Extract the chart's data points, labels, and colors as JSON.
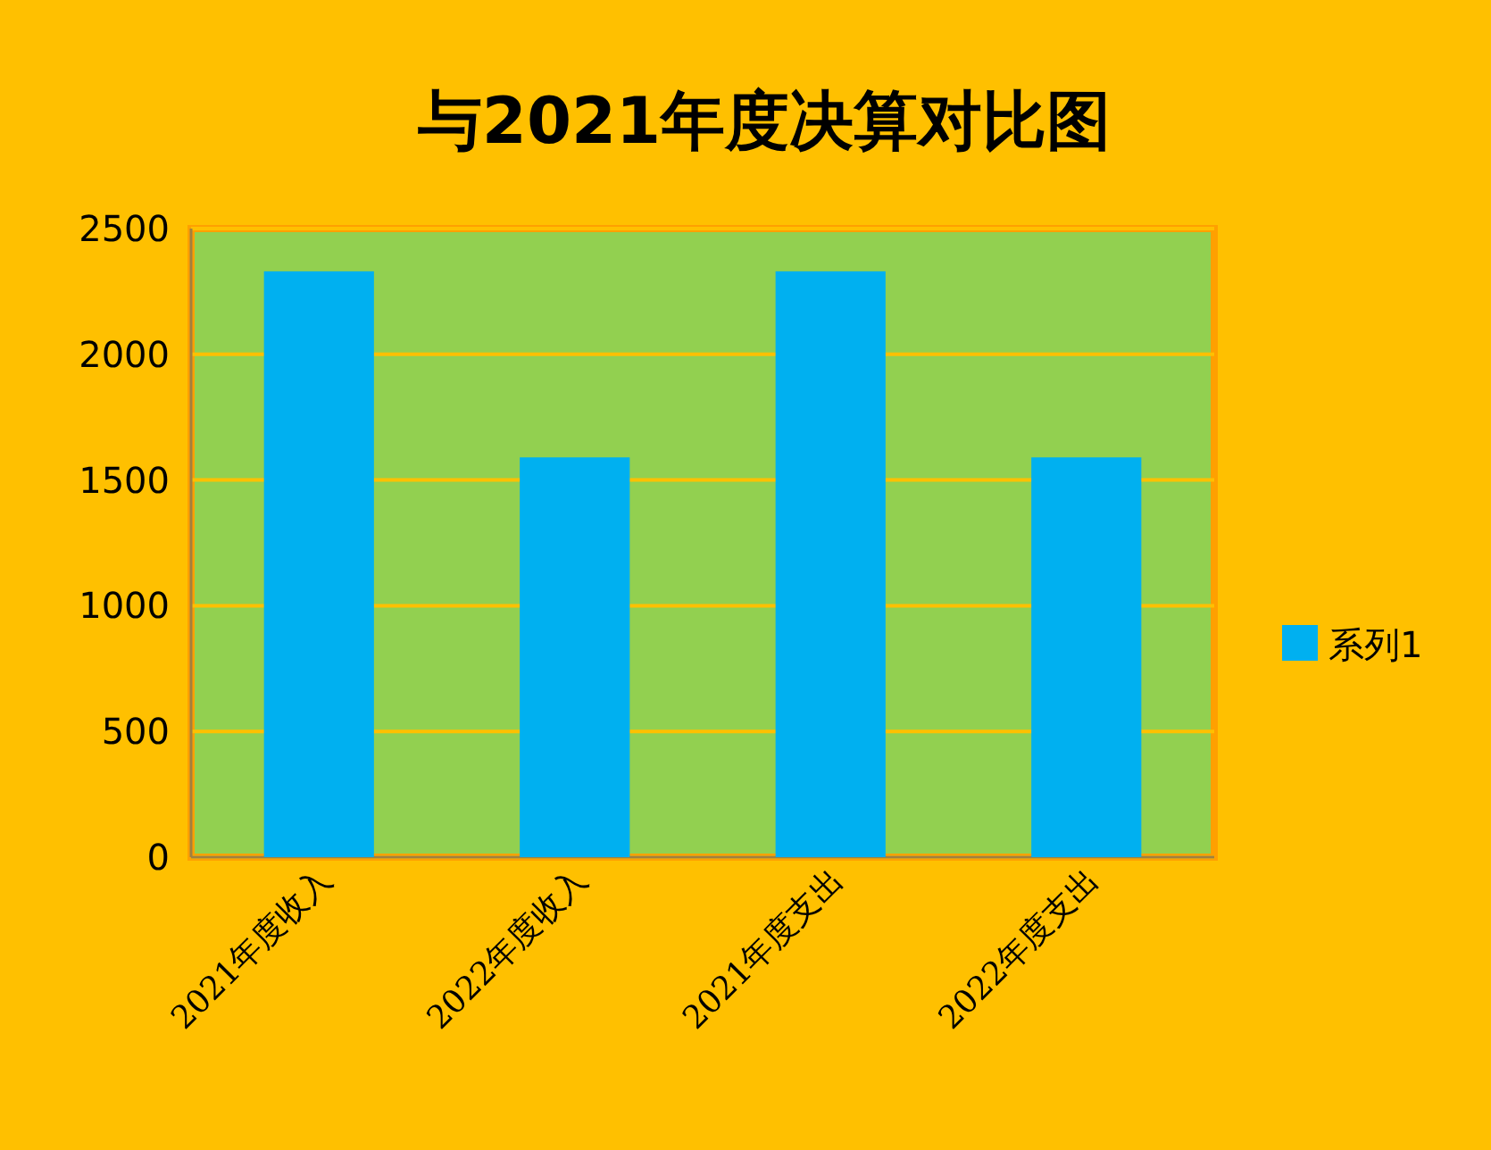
{
  "chart_data": {
    "type": "bar",
    "title": "与2021年度决算对比图",
    "categories": [
      "2021年度收入",
      "2022年度收入",
      "2021年度支出",
      "2022年度支出"
    ],
    "series": [
      {
        "name": "系列1",
        "color": "#00b0f0",
        "values": [
          2330,
          1590,
          2330,
          1590
        ]
      }
    ],
    "ylim": [
      0,
      2500
    ],
    "yticks": [
      0,
      500,
      1000,
      1500,
      2000,
      2500
    ],
    "grid": "y",
    "legend": "right"
  }
}
